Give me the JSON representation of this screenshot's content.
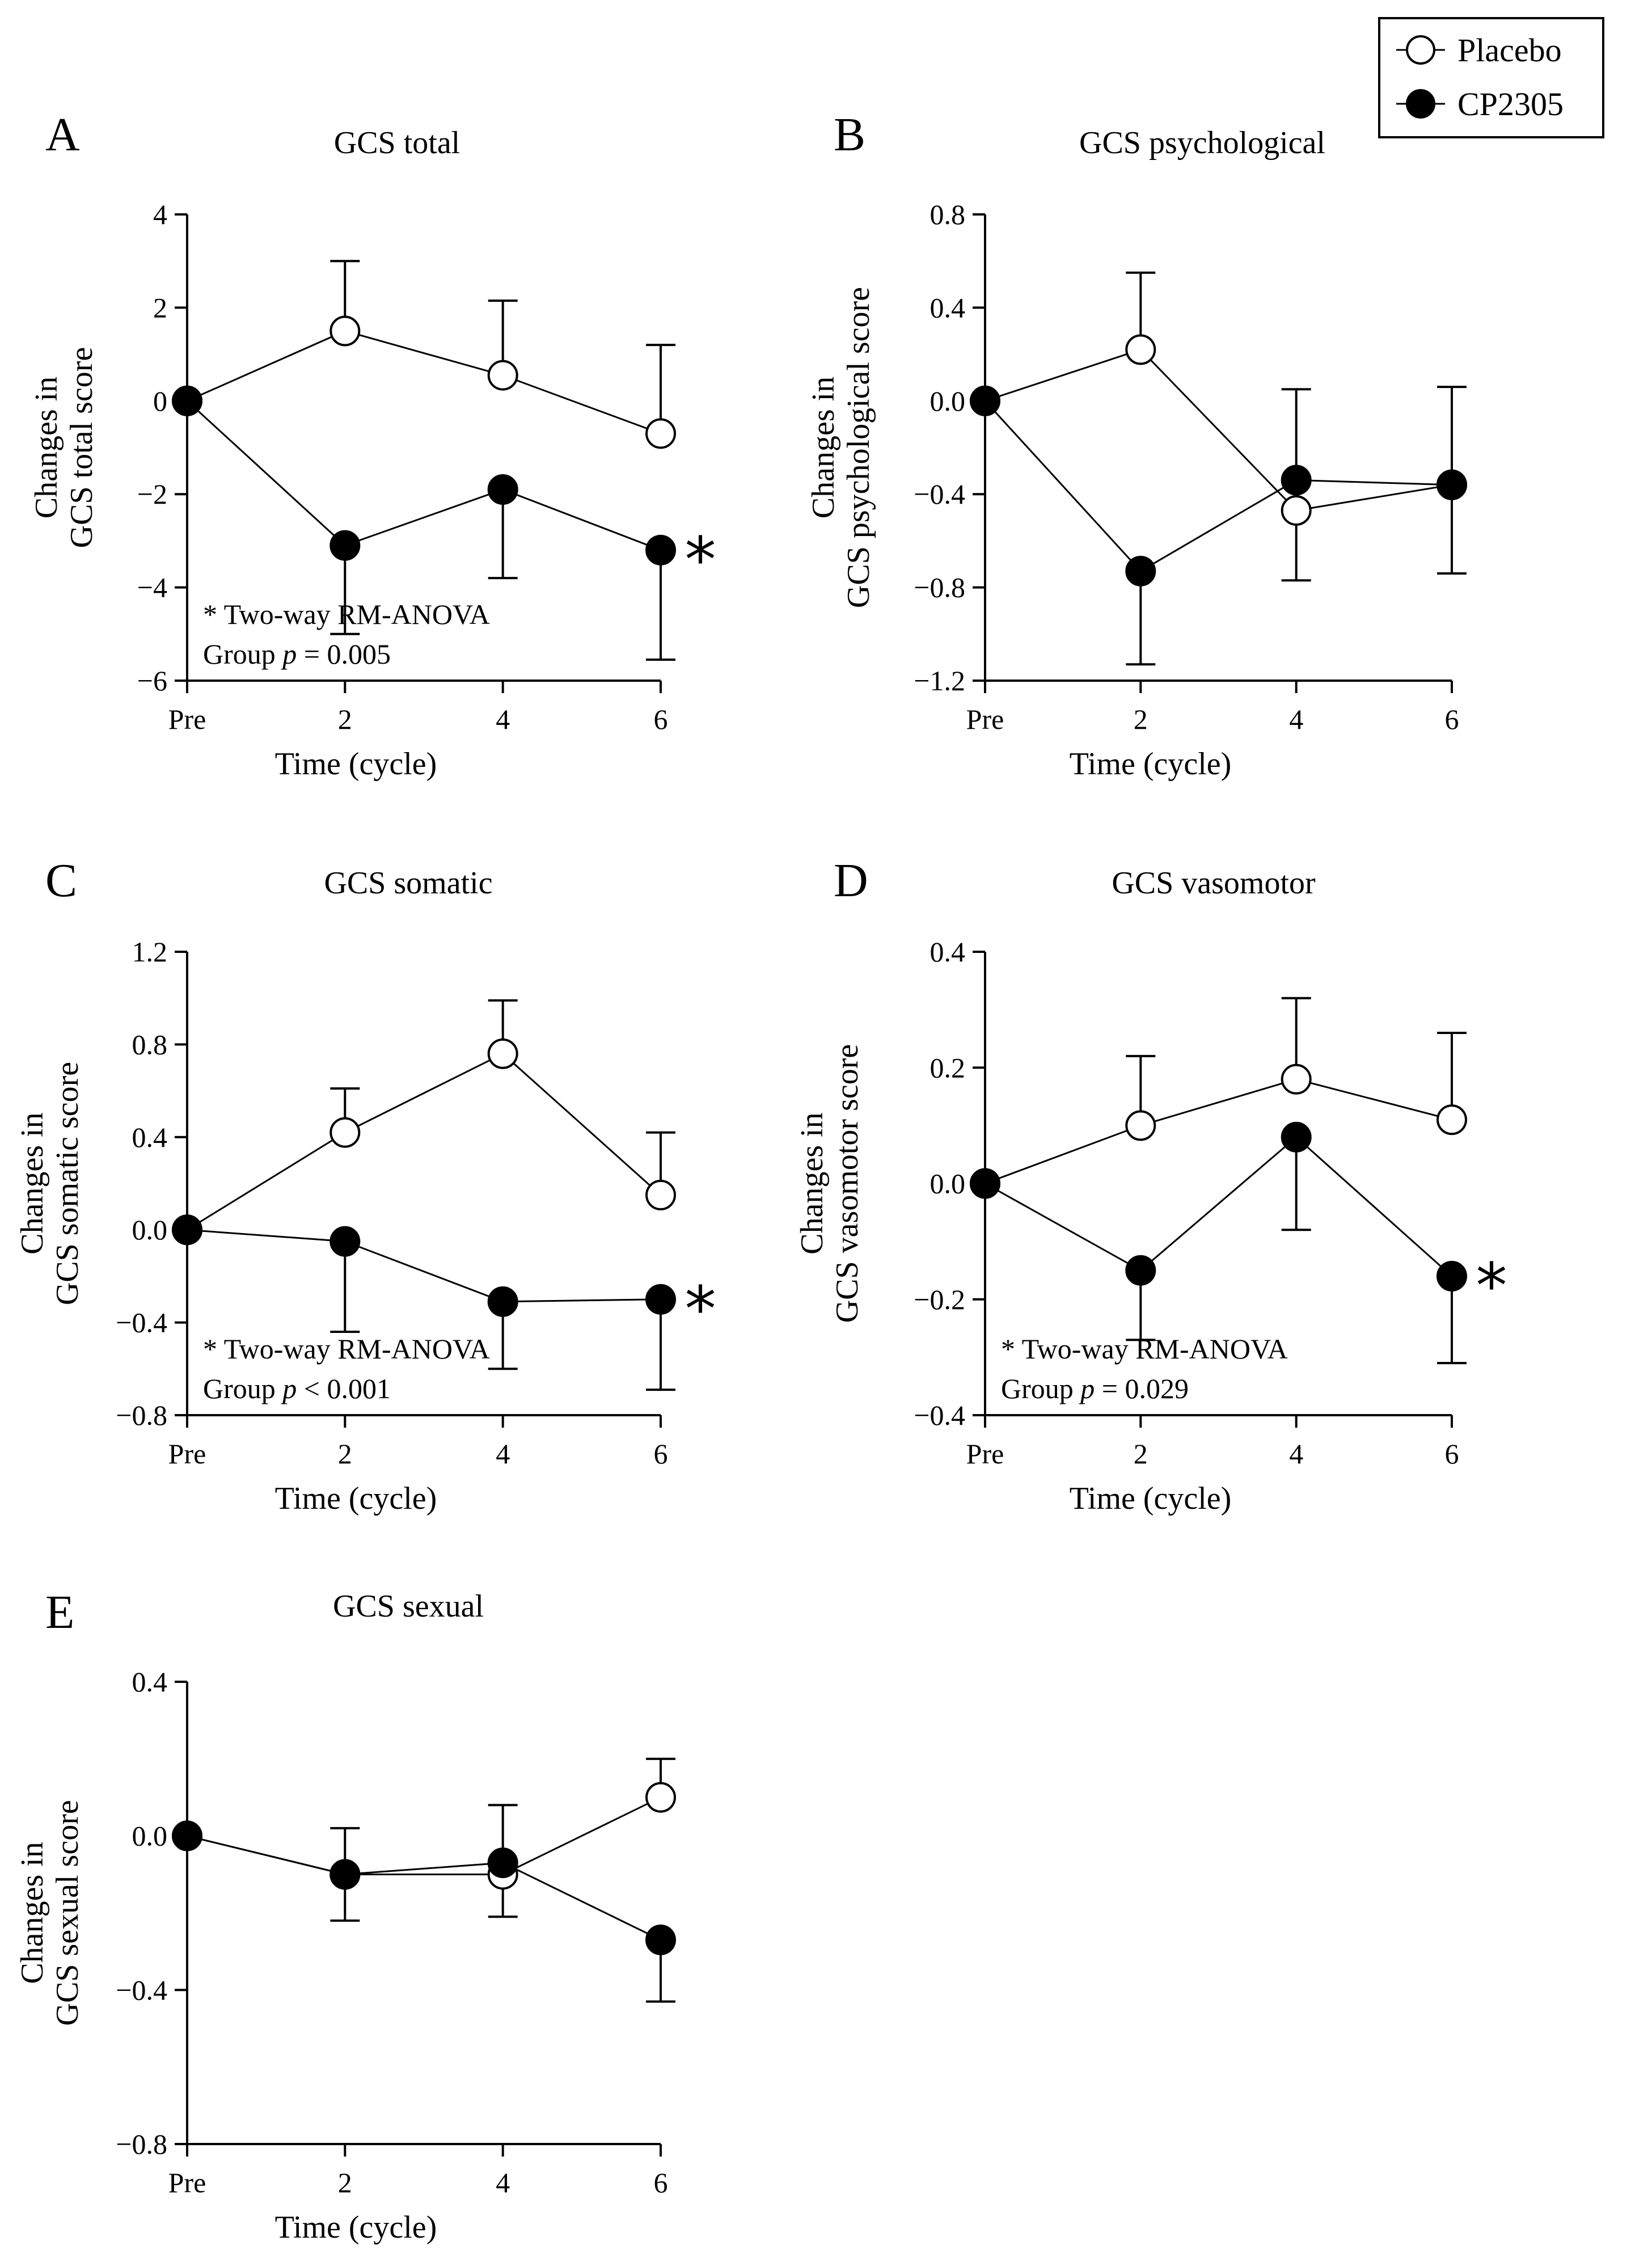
{
  "legend": {
    "items": [
      {
        "label": "Placebo",
        "marker": "open-circle"
      },
      {
        "label": "CP2305",
        "marker": "filled-circle"
      }
    ]
  },
  "chart_data": [
    {
      "panel": "A",
      "type": "line",
      "title": "GCS total",
      "xlabel": "Time  (cycle)",
      "ylabel_lines": [
        "Changes  in",
        "GCS total  score"
      ],
      "categories": [
        "Pre",
        "2",
        "4",
        "6"
      ],
      "ylim": [
        -6,
        4
      ],
      "yticks": [
        4,
        2,
        0,
        -2,
        -4,
        -6
      ],
      "ytick_labels": [
        "4",
        "2",
        "0",
        "−2",
        "−4",
        "−6"
      ],
      "series": [
        {
          "name": "Placebo",
          "values": [
            0,
            1.5,
            0.55,
            -0.7
          ],
          "errors": [
            0,
            1.5,
            1.6,
            1.9
          ],
          "err_dir": "up"
        },
        {
          "name": "CP2305",
          "values": [
            0,
            -3.1,
            -1.9,
            -3.2
          ],
          "errors": [
            0,
            1.9,
            1.9,
            2.35
          ],
          "err_dir": "down"
        }
      ],
      "annotation_lines": [
        "* Two-way RM-ANOVA",
        "Group "
      ],
      "annotation_p": "p",
      "annotation_value": " = 0.005",
      "significance": "*"
    },
    {
      "panel": "B",
      "type": "line",
      "title": "GCS psychological",
      "xlabel": "Time  (cycle)",
      "ylabel_lines": [
        "Changes  in",
        "GCS psychological  score"
      ],
      "categories": [
        "Pre",
        "2",
        "4",
        "6"
      ],
      "ylim": [
        -1.2,
        0.8
      ],
      "yticks": [
        0.8,
        0.4,
        0.0,
        -0.4,
        -0.8,
        -1.2
      ],
      "ytick_labels": [
        "0.8",
        "0.4",
        "0.0",
        "−0.4",
        "−0.8",
        "−1.2"
      ],
      "series": [
        {
          "name": "Placebo",
          "values": [
            0,
            0.22,
            -0.47,
            -0.36
          ],
          "errors": [
            0,
            0.33,
            0.3,
            0.38
          ],
          "err_dir": "mixed",
          "err_dirs": [
            "none",
            "up",
            "down",
            "down"
          ]
        },
        {
          "name": "CP2305",
          "values": [
            0,
            -0.73,
            -0.34,
            -0.36
          ],
          "errors": [
            0,
            0.4,
            0.39,
            0.42
          ],
          "err_dir": "mixed",
          "err_dirs": [
            "none",
            "down",
            "up",
            "up"
          ]
        }
      ]
    },
    {
      "panel": "C",
      "type": "line",
      "title": "GCS somatic",
      "xlabel": "Time  (cycle)",
      "ylabel_lines": [
        "Changes  in",
        "GCS somatic  score"
      ],
      "categories": [
        "Pre",
        "2",
        "4",
        "6"
      ],
      "ylim": [
        -0.8,
        1.2
      ],
      "yticks": [
        1.2,
        0.8,
        0.4,
        0.0,
        -0.4,
        -0.8
      ],
      "ytick_labels": [
        "1.2",
        "0.8",
        "0.4",
        "0.0",
        "−0.4",
        "−0.8"
      ],
      "series": [
        {
          "name": "Placebo",
          "values": [
            0,
            0.42,
            0.76,
            0.15
          ],
          "errors": [
            0,
            0.19,
            0.23,
            0.27
          ],
          "err_dir": "up"
        },
        {
          "name": "CP2305",
          "values": [
            0,
            -0.05,
            -0.31,
            -0.3
          ],
          "errors": [
            0,
            0.39,
            0.29,
            0.39
          ],
          "err_dir": "down"
        }
      ],
      "annotation_lines": [
        "* Two-way RM-ANOVA",
        "Group "
      ],
      "annotation_p": "p",
      "annotation_value": " < 0.001",
      "significance": "*"
    },
    {
      "panel": "D",
      "type": "line",
      "title": "GCS vasomotor",
      "xlabel": "Time  (cycle)",
      "ylabel_lines": [
        "Changes  in",
        "GCS vasomotor  score"
      ],
      "categories": [
        "Pre",
        "2",
        "4",
        "6"
      ],
      "ylim": [
        -0.4,
        0.4
      ],
      "yticks": [
        0.4,
        0.2,
        0.0,
        -0.2,
        -0.4
      ],
      "ytick_labels": [
        "0.4",
        "0.2",
        "0.0",
        "−0.2",
        "−0.4"
      ],
      "series": [
        {
          "name": "Placebo",
          "values": [
            0,
            0.1,
            0.18,
            0.11
          ],
          "errors": [
            0,
            0.12,
            0.14,
            0.15
          ],
          "err_dir": "up"
        },
        {
          "name": "CP2305",
          "values": [
            0,
            -0.15,
            0.08,
            -0.16
          ],
          "errors": [
            0,
            0.12,
            0.16,
            0.15
          ],
          "err_dir": "down"
        }
      ],
      "annotation_lines": [
        "* Two-way RM-ANOVA",
        "Group "
      ],
      "annotation_p": "p",
      "annotation_value": " = 0.029",
      "significance": "*"
    },
    {
      "panel": "E",
      "type": "line",
      "title": "GCS sexual",
      "xlabel": "Time  (cycle)",
      "ylabel_lines": [
        "Changes  in",
        "GCS sexual  score"
      ],
      "categories": [
        "Pre",
        "2",
        "4",
        "6"
      ],
      "ylim": [
        -0.8,
        0.4
      ],
      "yticks": [
        0.4,
        0.0,
        -0.4,
        -0.8
      ],
      "ytick_labels": [
        "0.4",
        "0.0",
        "−0.4",
        "−0.8"
      ],
      "series": [
        {
          "name": "Placebo",
          "values": [
            0,
            -0.1,
            -0.1,
            0.1
          ],
          "errors": [
            0,
            0.12,
            0.11,
            0.1
          ],
          "err_dir": "mixed",
          "err_dirs": [
            "none",
            "down",
            "down",
            "up"
          ]
        },
        {
          "name": "CP2305",
          "values": [
            0,
            -0.1,
            -0.07,
            -0.27
          ],
          "errors": [
            0,
            0.12,
            0.15,
            0.16
          ],
          "err_dir": "mixed",
          "err_dirs": [
            "none",
            "up",
            "up",
            "down"
          ]
        }
      ]
    }
  ]
}
